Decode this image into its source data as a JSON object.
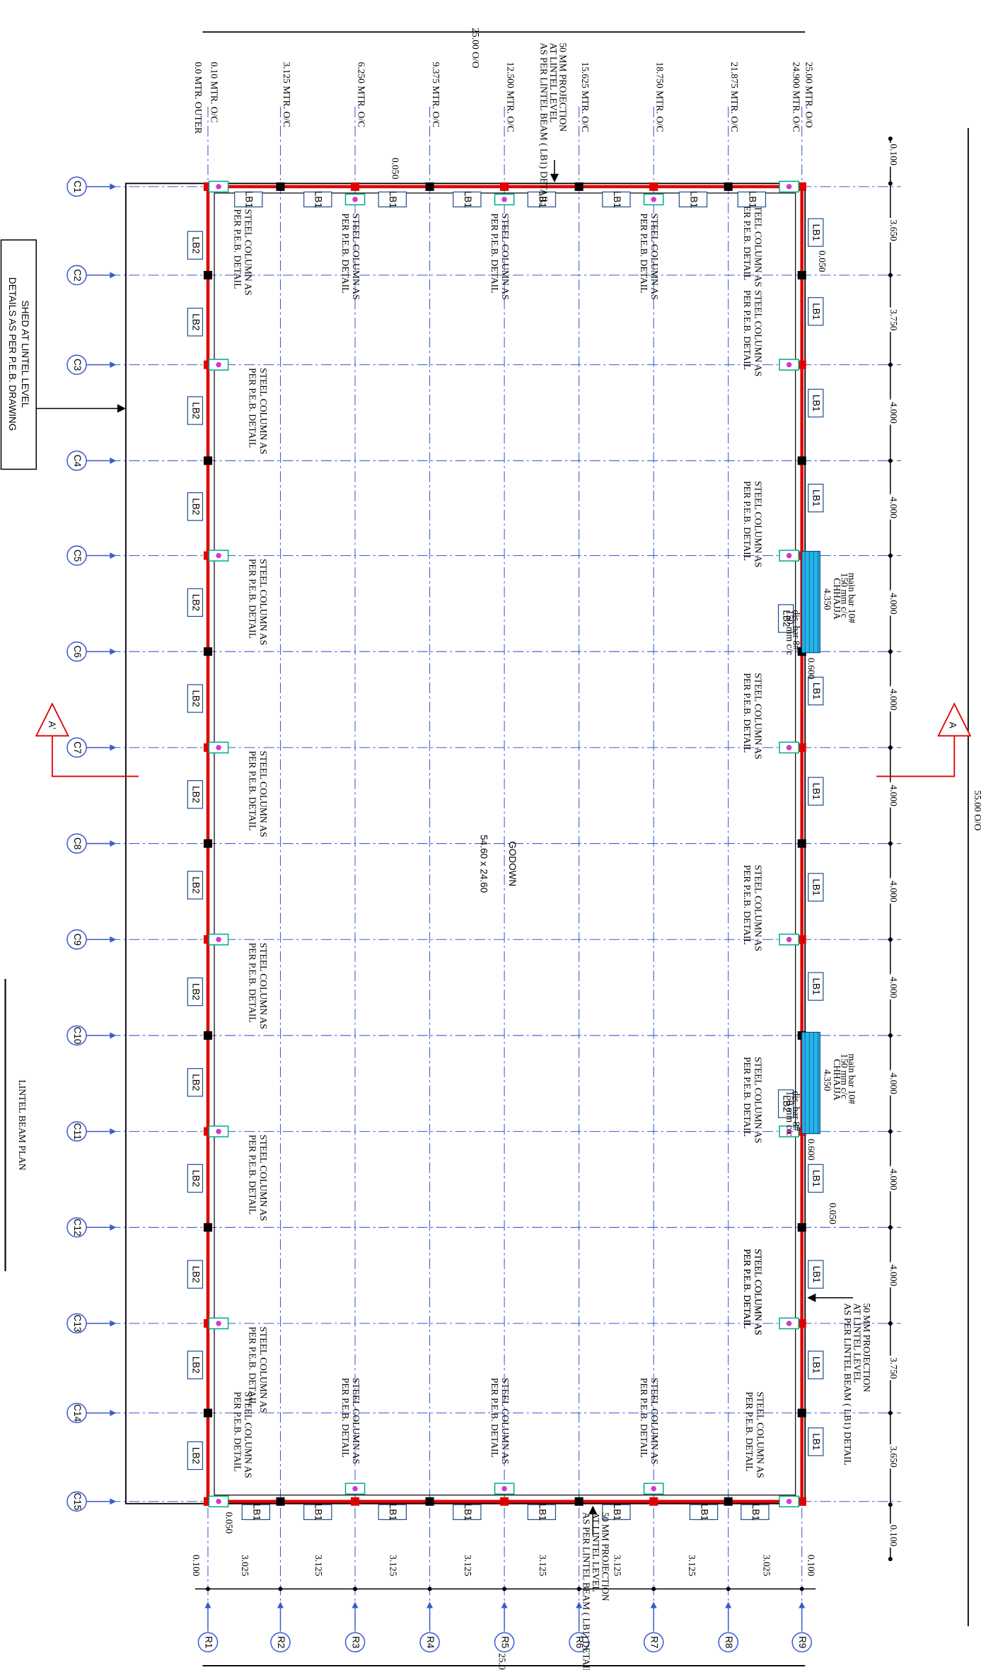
{
  "title": "LINTEL BEAM PLAN",
  "room": {
    "name": "GODOWN",
    "size": "54.60 x 24.60"
  },
  "overall": {
    "length": "55.00 O/O",
    "width": "25.00 O/O",
    "width_bottom": "25.0"
  },
  "grid_columns": [
    "C1",
    "C2",
    "C3",
    "C4",
    "C5",
    "C6",
    "C7",
    "C8",
    "C9",
    "C10",
    "C11",
    "C12",
    "C13",
    "C14",
    "C15"
  ],
  "grid_rows": [
    "R1",
    "R2",
    "R3",
    "R4",
    "R5",
    "R6",
    "R7",
    "R8",
    "R9"
  ],
  "column_spacing": [
    "0.100",
    "3.650",
    "3.750",
    "4.000",
    "4.000",
    "4.000",
    "4.000",
    "4.000",
    "4.000",
    "4.000",
    "4.000",
    "4.000",
    "4.000",
    "3.750",
    "3.650",
    "0.100"
  ],
  "row_spacing": [
    "0.100",
    "3.025",
    "3.125",
    "3.125",
    "3.125",
    "3.125",
    "3.125",
    "3.125",
    "3.025",
    "0.100"
  ],
  "offsets": [
    "0.0 MTR. OUTER",
    "0.10 MTR. O/C",
    "3.125 MTR. O/C",
    "6.250 MTR. O/C",
    "9.375 MTR. O/C",
    "12.500 MTR. O/C",
    "15.625 MTR. O/C",
    "18.750 MTR. O/C",
    "21.875 MTR. O/C",
    "24.900 MTR. O/C",
    "25.00 MTR. O/O"
  ],
  "shed_note": [
    "SHED AT LINTEL LEVEL",
    "DETAILS AS PER P.E.B. DRAWING"
  ],
  "projection_note": [
    "50 MM PROJECTION",
    "AT LINTEL LEVEL",
    "AS PER LINTEL BEAM ( LB1) DETAIL"
  ],
  "steel_column_note": [
    "STEEL COLUMN AS",
    "PER P.E.B. DETAIL"
  ],
  "section_marks": [
    "A",
    "A'"
  ],
  "beam_tags": {
    "lb1": "LB1",
    "lb2": "LB2"
  },
  "chhajja": {
    "main_bar": "main bar 10#",
    "spacing": "150 mm c/c",
    "label": "CHHAJJA",
    "dist_bar": "dis. bar 8#",
    "length": "4.350",
    "width": "0.600"
  },
  "gap": "0.050"
}
